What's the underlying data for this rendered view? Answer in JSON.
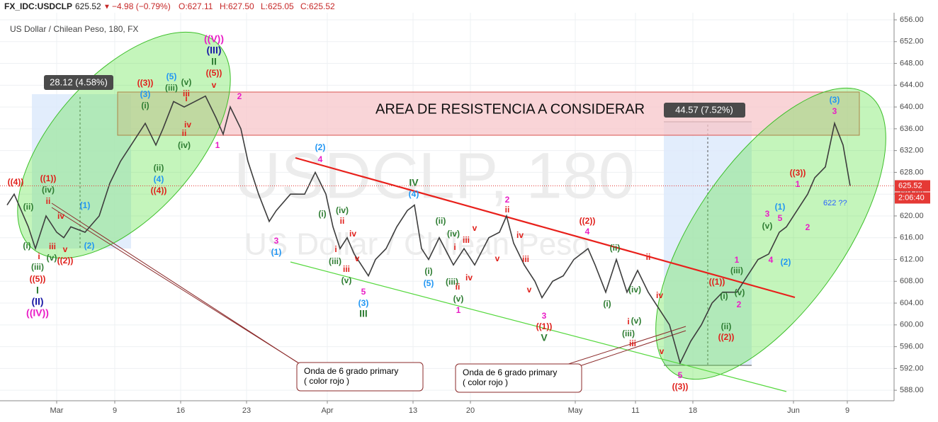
{
  "chart_data": {
    "type": "line",
    "title": "US Dollar / Chilean Peso, 180, FX",
    "header": {
      "symbol": "FX_IDC:USDCLP",
      "last": "625.52",
      "arrow": "▼",
      "change": "−4.98 (−0.79%)",
      "open": "O:627.11",
      "high": "H:627.50",
      "low": "L:625.05",
      "close": "C:625.52"
    },
    "watermark": "USDCLP, 180",
    "watermark_sub": "US Dollar / Chilean Peso",
    "resistance_label": "AREA DE RESISTENCIA  A CONSIDERAR",
    "measures": [
      "28.12 (4.58%)",
      "44.57 (7.52%)"
    ],
    "callouts": [
      "Onda de 6 grado primary",
      "( color rojo )",
      "Onda de 6 grado primary",
      "( color rojo )"
    ],
    "countdown": "2:06:40",
    "target_note": "622 ??",
    "color": "#3d3d3d",
    "grid": true,
    "x": [
      0,
      1,
      3,
      4,
      5.5,
      7,
      8,
      9,
      11,
      13,
      14.5,
      16,
      18,
      19.5,
      21,
      22,
      23.5,
      25,
      26.5,
      28,
      29.5,
      30.5,
      31.5,
      33,
      34,
      35.5,
      37,
      38,
      40,
      42,
      43.5,
      45,
      46,
      47,
      48,
      49,
      50,
      51,
      52,
      53.5,
      55,
      56.5,
      57.5,
      58.5,
      59.5,
      61,
      63,
      64.5,
      66,
      68,
      69.5,
      70.5,
      71.5,
      73,
      74.5,
      75.5,
      77,
      78.5,
      80,
      82,
      83,
      84.5,
      86,
      87.5,
      89,
      90.5,
      92,
      93.5,
      95,
      96.5,
      98,
      99.5,
      101,
      103,
      104.5,
      106,
      107.5,
      109,
      110,
      111.5,
      113,
      114,
      115.5,
      116.8,
      118,
      119
    ],
    "values": [
      622,
      624,
      618,
      614,
      620,
      617,
      616,
      618,
      617,
      620,
      626,
      630,
      634,
      637,
      633,
      636,
      641,
      640,
      641,
      642,
      638,
      635,
      640,
      636,
      630,
      624,
      619,
      621,
      624,
      624,
      628,
      624,
      618,
      614,
      616,
      613,
      611,
      609,
      612,
      614,
      618,
      621,
      622,
      614,
      612,
      616,
      611,
      614,
      611,
      616,
      617,
      620,
      615,
      611,
      608,
      605,
      608,
      609,
      612,
      614,
      611,
      606,
      612,
      606,
      610,
      606,
      603,
      600,
      593,
      597,
      600,
      604,
      606,
      606,
      609,
      612,
      613,
      617,
      618,
      621,
      624,
      627,
      629,
      637,
      633,
      625.52
    ],
    "xlim": [
      0,
      125
    ],
    "xticks": [
      {
        "value": 7,
        "label": "Mar"
      },
      {
        "value": 15.2,
        "label": "9"
      },
      {
        "value": 24.5,
        "label": "16"
      },
      {
        "value": 33.8,
        "label": "23"
      },
      {
        "value": 45.2,
        "label": "Apr"
      },
      {
        "value": 57.3,
        "label": "13"
      },
      {
        "value": 65.4,
        "label": "20"
      },
      {
        "value": 80.2,
        "label": "May"
      },
      {
        "value": 88.7,
        "label": "11"
      },
      {
        "value": 96.8,
        "label": "18"
      },
      {
        "value": 111,
        "label": "Jun"
      },
      {
        "value": 118.6,
        "label": "9"
      }
    ],
    "ylim": [
      586.2,
      657.3
    ],
    "yticks": [
      {
        "value": 588,
        "label": "588.00"
      },
      {
        "value": 592,
        "label": "592.00"
      },
      {
        "value": 596,
        "label": "596.00"
      },
      {
        "value": 600,
        "label": "600.00"
      },
      {
        "value": 604,
        "label": "604.00"
      },
      {
        "value": 608,
        "label": "608.00"
      },
      {
        "value": 612,
        "label": "612.00"
      },
      {
        "value": 616,
        "label": "616.00"
      },
      {
        "value": 620,
        "label": "620.00"
      },
      {
        "value": 624,
        "label": "624.00"
      },
      {
        "value": 628,
        "label": "628.00"
      },
      {
        "value": 632,
        "label": "632.00"
      },
      {
        "value": 636,
        "label": "636.00"
      },
      {
        "value": 640,
        "label": "640.00"
      },
      {
        "value": 644,
        "label": "644.00"
      },
      {
        "value": 648,
        "label": "648.00"
      },
      {
        "value": 652,
        "label": "652.00"
      },
      {
        "value": 656,
        "label": "656.00"
      }
    ],
    "wave_labels": [
      {
        "text": "((4))",
        "color": "#e0201b"
      },
      {
        "text": "((1))",
        "color": "#e0201b"
      },
      {
        "text": "(iv)",
        "color": "#2e7d32"
      },
      {
        "text": "ii",
        "color": "#e0201b"
      },
      {
        "text": "(ii)",
        "color": "#2e7d32"
      },
      {
        "text": "iv",
        "color": "#e0201b"
      },
      {
        "text": "(1)",
        "color": "#2196f3"
      },
      {
        "text": "(i)",
        "color": "#2e7d32"
      },
      {
        "text": "i",
        "color": "#e0201b"
      },
      {
        "text": "iii",
        "color": "#e0201b"
      },
      {
        "text": "v",
        "color": "#e0201b"
      },
      {
        "text": "(v)",
        "color": "#2e7d32"
      },
      {
        "text": "((2))",
        "color": "#e0201b"
      },
      {
        "text": "(iii)",
        "color": "#2e7d32"
      },
      {
        "text": "((5))",
        "color": "#e0201b"
      },
      {
        "text": "I",
        "color": "#2e7d32"
      },
      {
        "text": "(II)",
        "color": "#1a1aa6"
      },
      {
        "text": "((IV))",
        "color": "#e91ec6"
      },
      {
        "text": "(2)",
        "color": "#2196f3"
      },
      {
        "text": "(3)",
        "color": "#2196f3"
      },
      {
        "text": "(5)",
        "color": "#2196f3"
      },
      {
        "text": "((3))",
        "color": "#e0201b"
      },
      {
        "text": "(iii)",
        "color": "#2e7d32"
      },
      {
        "text": "(v)",
        "color": "#2e7d32"
      },
      {
        "text": "i",
        "color": "#e0201b"
      },
      {
        "text": "(i)",
        "color": "#2e7d32"
      },
      {
        "text": "iii",
        "color": "#e0201b"
      },
      {
        "text": "iv",
        "color": "#e0201b"
      },
      {
        "text": "ii",
        "color": "#e0201b"
      },
      {
        "text": "(iv)",
        "color": "#2e7d32"
      },
      {
        "text": "(ii)",
        "color": "#2e7d32"
      },
      {
        "text": "(4)",
        "color": "#2196f3"
      },
      {
        "text": "((4))",
        "color": "#e0201b"
      },
      {
        "text": "((V))",
        "color": "#e91ec6"
      },
      {
        "text": "(III)",
        "color": "#1a1aa6"
      },
      {
        "text": "II",
        "color": "#2e7d32"
      },
      {
        "text": "((5))",
        "color": "#e0201b"
      },
      {
        "text": "v",
        "color": "#e0201b"
      },
      {
        "text": "2",
        "color": "#e91ec6"
      },
      {
        "text": "1",
        "color": "#e91ec6"
      },
      {
        "text": "(2)",
        "color": "#2196f3"
      },
      {
        "text": "4",
        "color": "#e91ec6"
      },
      {
        "text": "3",
        "color": "#e91ec6"
      },
      {
        "text": "(1)",
        "color": "#2196f3"
      },
      {
        "text": "IV",
        "color": "#2e7d32"
      },
      {
        "text": "(4)",
        "color": "#2196f3"
      },
      {
        "text": "2",
        "color": "#e91ec6"
      },
      {
        "text": "ii",
        "color": "#e0201b"
      },
      {
        "text": "((2))",
        "color": "#e0201b"
      },
      {
        "text": "4",
        "color": "#e91ec6"
      },
      {
        "text": "(ii)",
        "color": "#2e7d32"
      },
      {
        "text": "(iv)",
        "color": "#2e7d32"
      },
      {
        "text": "v",
        "color": "#e0201b"
      },
      {
        "text": "i",
        "color": "#e0201b"
      },
      {
        "text": "iii",
        "color": "#e0201b"
      },
      {
        "text": "v",
        "color": "#e0201b"
      },
      {
        "text": "iv",
        "color": "#e0201b"
      },
      {
        "text": "iii",
        "color": "#e0201b"
      },
      {
        "text": "(i)",
        "color": "#2e7d32"
      },
      {
        "text": "(iv)",
        "color": "#2e7d32"
      },
      {
        "text": "ii",
        "color": "#e0201b"
      },
      {
        "text": "iv",
        "color": "#e0201b"
      },
      {
        "text": "i",
        "color": "#e0201b"
      },
      {
        "text": "(iii)",
        "color": "#2e7d32"
      },
      {
        "text": "v",
        "color": "#e0201b"
      },
      {
        "text": "iii",
        "color": "#e0201b"
      },
      {
        "text": "(v)",
        "color": "#2e7d32"
      },
      {
        "text": "5",
        "color": "#e91ec6"
      },
      {
        "text": "(3)",
        "color": "#2196f3"
      },
      {
        "text": "III",
        "color": "#2e7d32"
      },
      {
        "text": "(i)",
        "color": "#2e7d32"
      },
      {
        "text": "(5)",
        "color": "#2196f3"
      },
      {
        "text": "(iii)",
        "color": "#2e7d32"
      },
      {
        "text": "ii",
        "color": "#e0201b"
      },
      {
        "text": "iv",
        "color": "#e0201b"
      },
      {
        "text": "(v)",
        "color": "#2e7d32"
      },
      {
        "text": "1",
        "color": "#e91ec6"
      },
      {
        "text": "v",
        "color": "#e0201b"
      },
      {
        "text": "3",
        "color": "#e91ec6"
      },
      {
        "text": "((1))",
        "color": "#e0201b"
      },
      {
        "text": "V",
        "color": "#2e7d32"
      },
      {
        "text": "(ii)",
        "color": "#2e7d32"
      },
      {
        "text": "ii",
        "color": "#e0201b"
      },
      {
        "text": "(iv)",
        "color": "#2e7d32"
      },
      {
        "text": "(i)",
        "color": "#2e7d32"
      },
      {
        "text": "i",
        "color": "#e0201b"
      },
      {
        "text": "(v)",
        "color": "#2e7d32"
      },
      {
        "text": "iii",
        "color": "#e0201b"
      },
      {
        "text": "(iii)",
        "color": "#2e7d32"
      },
      {
        "text": "iv",
        "color": "#e0201b"
      },
      {
        "text": "v",
        "color": "#e0201b"
      },
      {
        "text": "5",
        "color": "#e91ec6"
      },
      {
        "text": "((3))",
        "color": "#e0201b"
      },
      {
        "text": "((1))",
        "color": "#e0201b"
      },
      {
        "text": "(i)",
        "color": "#2e7d32"
      },
      {
        "text": "(iii)",
        "color": "#2e7d32"
      },
      {
        "text": "1",
        "color": "#e91ec6"
      },
      {
        "text": "(v)",
        "color": "#2e7d32"
      },
      {
        "text": "2",
        "color": "#e91ec6"
      },
      {
        "text": "(ii)",
        "color": "#2e7d32"
      },
      {
        "text": "((2))",
        "color": "#e0201b"
      },
      {
        "text": "3",
        "color": "#e91ec6"
      },
      {
        "text": "(v)",
        "color": "#2e7d32"
      },
      {
        "text": "5",
        "color": "#e91ec6"
      },
      {
        "text": "(1)",
        "color": "#2196f3"
      },
      {
        "text": "4",
        "color": "#e91ec6"
      },
      {
        "text": "(2)",
        "color": "#2196f3"
      },
      {
        "text": "2",
        "color": "#e91ec6"
      },
      {
        "text": "1",
        "color": "#e91ec6"
      },
      {
        "text": "((3))",
        "color": "#e0201b"
      },
      {
        "text": "(3)",
        "color": "#2196f3"
      },
      {
        "text": "3",
        "color": "#e91ec6"
      }
    ]
  }
}
